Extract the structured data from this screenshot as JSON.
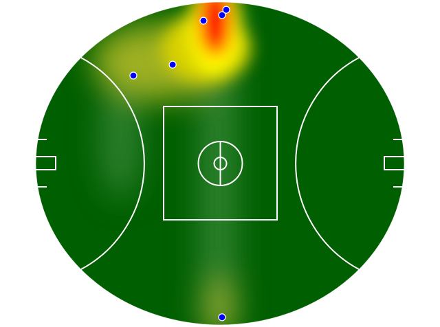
{
  "chart_data": {
    "type": "heatmap",
    "field": {
      "kind": "AFL oval",
      "length_m": 165,
      "width_m": 145
    },
    "colors": {
      "grass": "#005f00",
      "low": "#4a9a4a",
      "mid": "#ffff00",
      "high": "#ff0000",
      "marker": "#0000ff",
      "lines": "#ffffff"
    },
    "points": [
      {
        "x": -7.4,
        "y": 64.0
      },
      {
        "x": 0.9,
        "y": 66.5
      },
      {
        "x": 2.8,
        "y": 68.9
      },
      {
        "x": -21.2,
        "y": 44.3
      },
      {
        "x": -38.8,
        "y": 39.4
      },
      {
        "x": 0.9,
        "y": -68.9
      }
    ]
  }
}
